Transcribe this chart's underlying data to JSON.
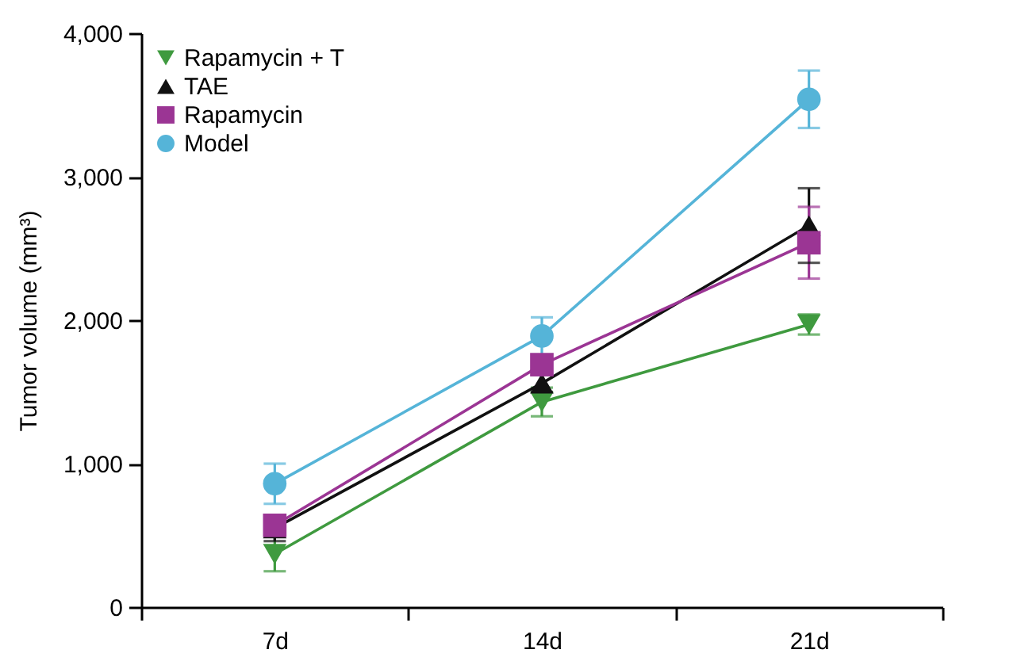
{
  "chart_data": {
    "type": "line",
    "ylabel": "Tumor volume (mm³)",
    "categories": [
      "7d",
      "14d",
      "21d"
    ],
    "ylim": [
      0,
      4000
    ],
    "yticks": [
      0,
      {
        "value": 1000,
        "label": "1,000"
      },
      {
        "value": 2000,
        "label": "2,000"
      },
      {
        "value": 3000,
        "label": "3,000"
      },
      {
        "value": 4000,
        "label": "4,000"
      }
    ],
    "grid": false,
    "legend": "top left",
    "line_style": "solid",
    "series": [
      {
        "name": "Rapamycin + T",
        "color": "#3f9a3f",
        "marker": "triangle-down",
        "values": [
          370,
          1430,
          1970
        ],
        "errors": [
          120,
          100,
          70
        ]
      },
      {
        "name": "TAE",
        "color": "#111111",
        "marker": "triangle",
        "values": [
          550,
          1560,
          2660
        ],
        "errors": [
          90,
          60,
          260
        ]
      },
      {
        "name": "Rapamycin",
        "color": "#9b3594",
        "marker": "square",
        "values": [
          570,
          1690,
          2540
        ],
        "errors": [
          60,
          50,
          250
        ]
      },
      {
        "name": "Model",
        "color": "#55b4d8",
        "marker": "circle",
        "values": [
          860,
          1890,
          3540
        ],
        "errors": [
          140,
          130,
          200
        ]
      }
    ]
  }
}
